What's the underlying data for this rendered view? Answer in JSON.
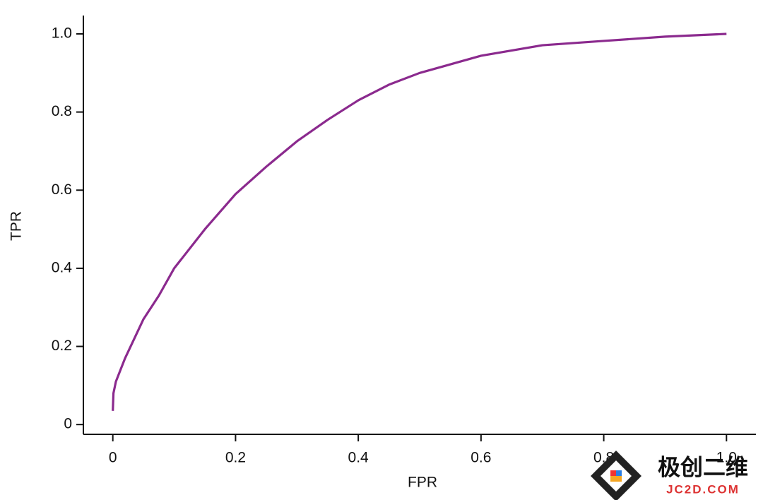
{
  "chart_data": {
    "type": "line",
    "x_label": "FPR",
    "y_label": "TPR",
    "x": [
      0,
      0.001,
      0.005,
      0.02,
      0.05,
      0.075,
      0.1,
      0.15,
      0.2,
      0.25,
      0.3,
      0.35,
      0.4,
      0.45,
      0.5,
      0.6,
      0.7,
      0.8,
      0.9,
      1.0
    ],
    "series": [
      {
        "color": "#8b2a8e",
        "values": [
          0.035,
          0.08,
          0.11,
          0.17,
          0.27,
          0.33,
          0.4,
          0.5,
          0.59,
          0.66,
          0.725,
          0.78,
          0.83,
          0.87,
          0.9,
          0.944,
          0.971,
          0.982,
          0.993,
          1.0
        ]
      }
    ],
    "xlim": [
      -0.048,
      1.048
    ],
    "ylim": [
      -0.025,
      1.047
    ],
    "xticks": [
      0,
      0.2,
      0.4,
      0.6,
      {
        "value": 0.8,
        "label": "0.8"
      },
      {
        "value": 1,
        "label": "1.0"
      }
    ],
    "yticks": [
      0,
      0.2,
      0.4,
      0.6,
      0.8,
      {
        "value": 1,
        "label": "1.0"
      }
    ],
    "grid": false
  },
  "watermark": {
    "text": "极创二维",
    "subtext": "JC2D.COM"
  }
}
